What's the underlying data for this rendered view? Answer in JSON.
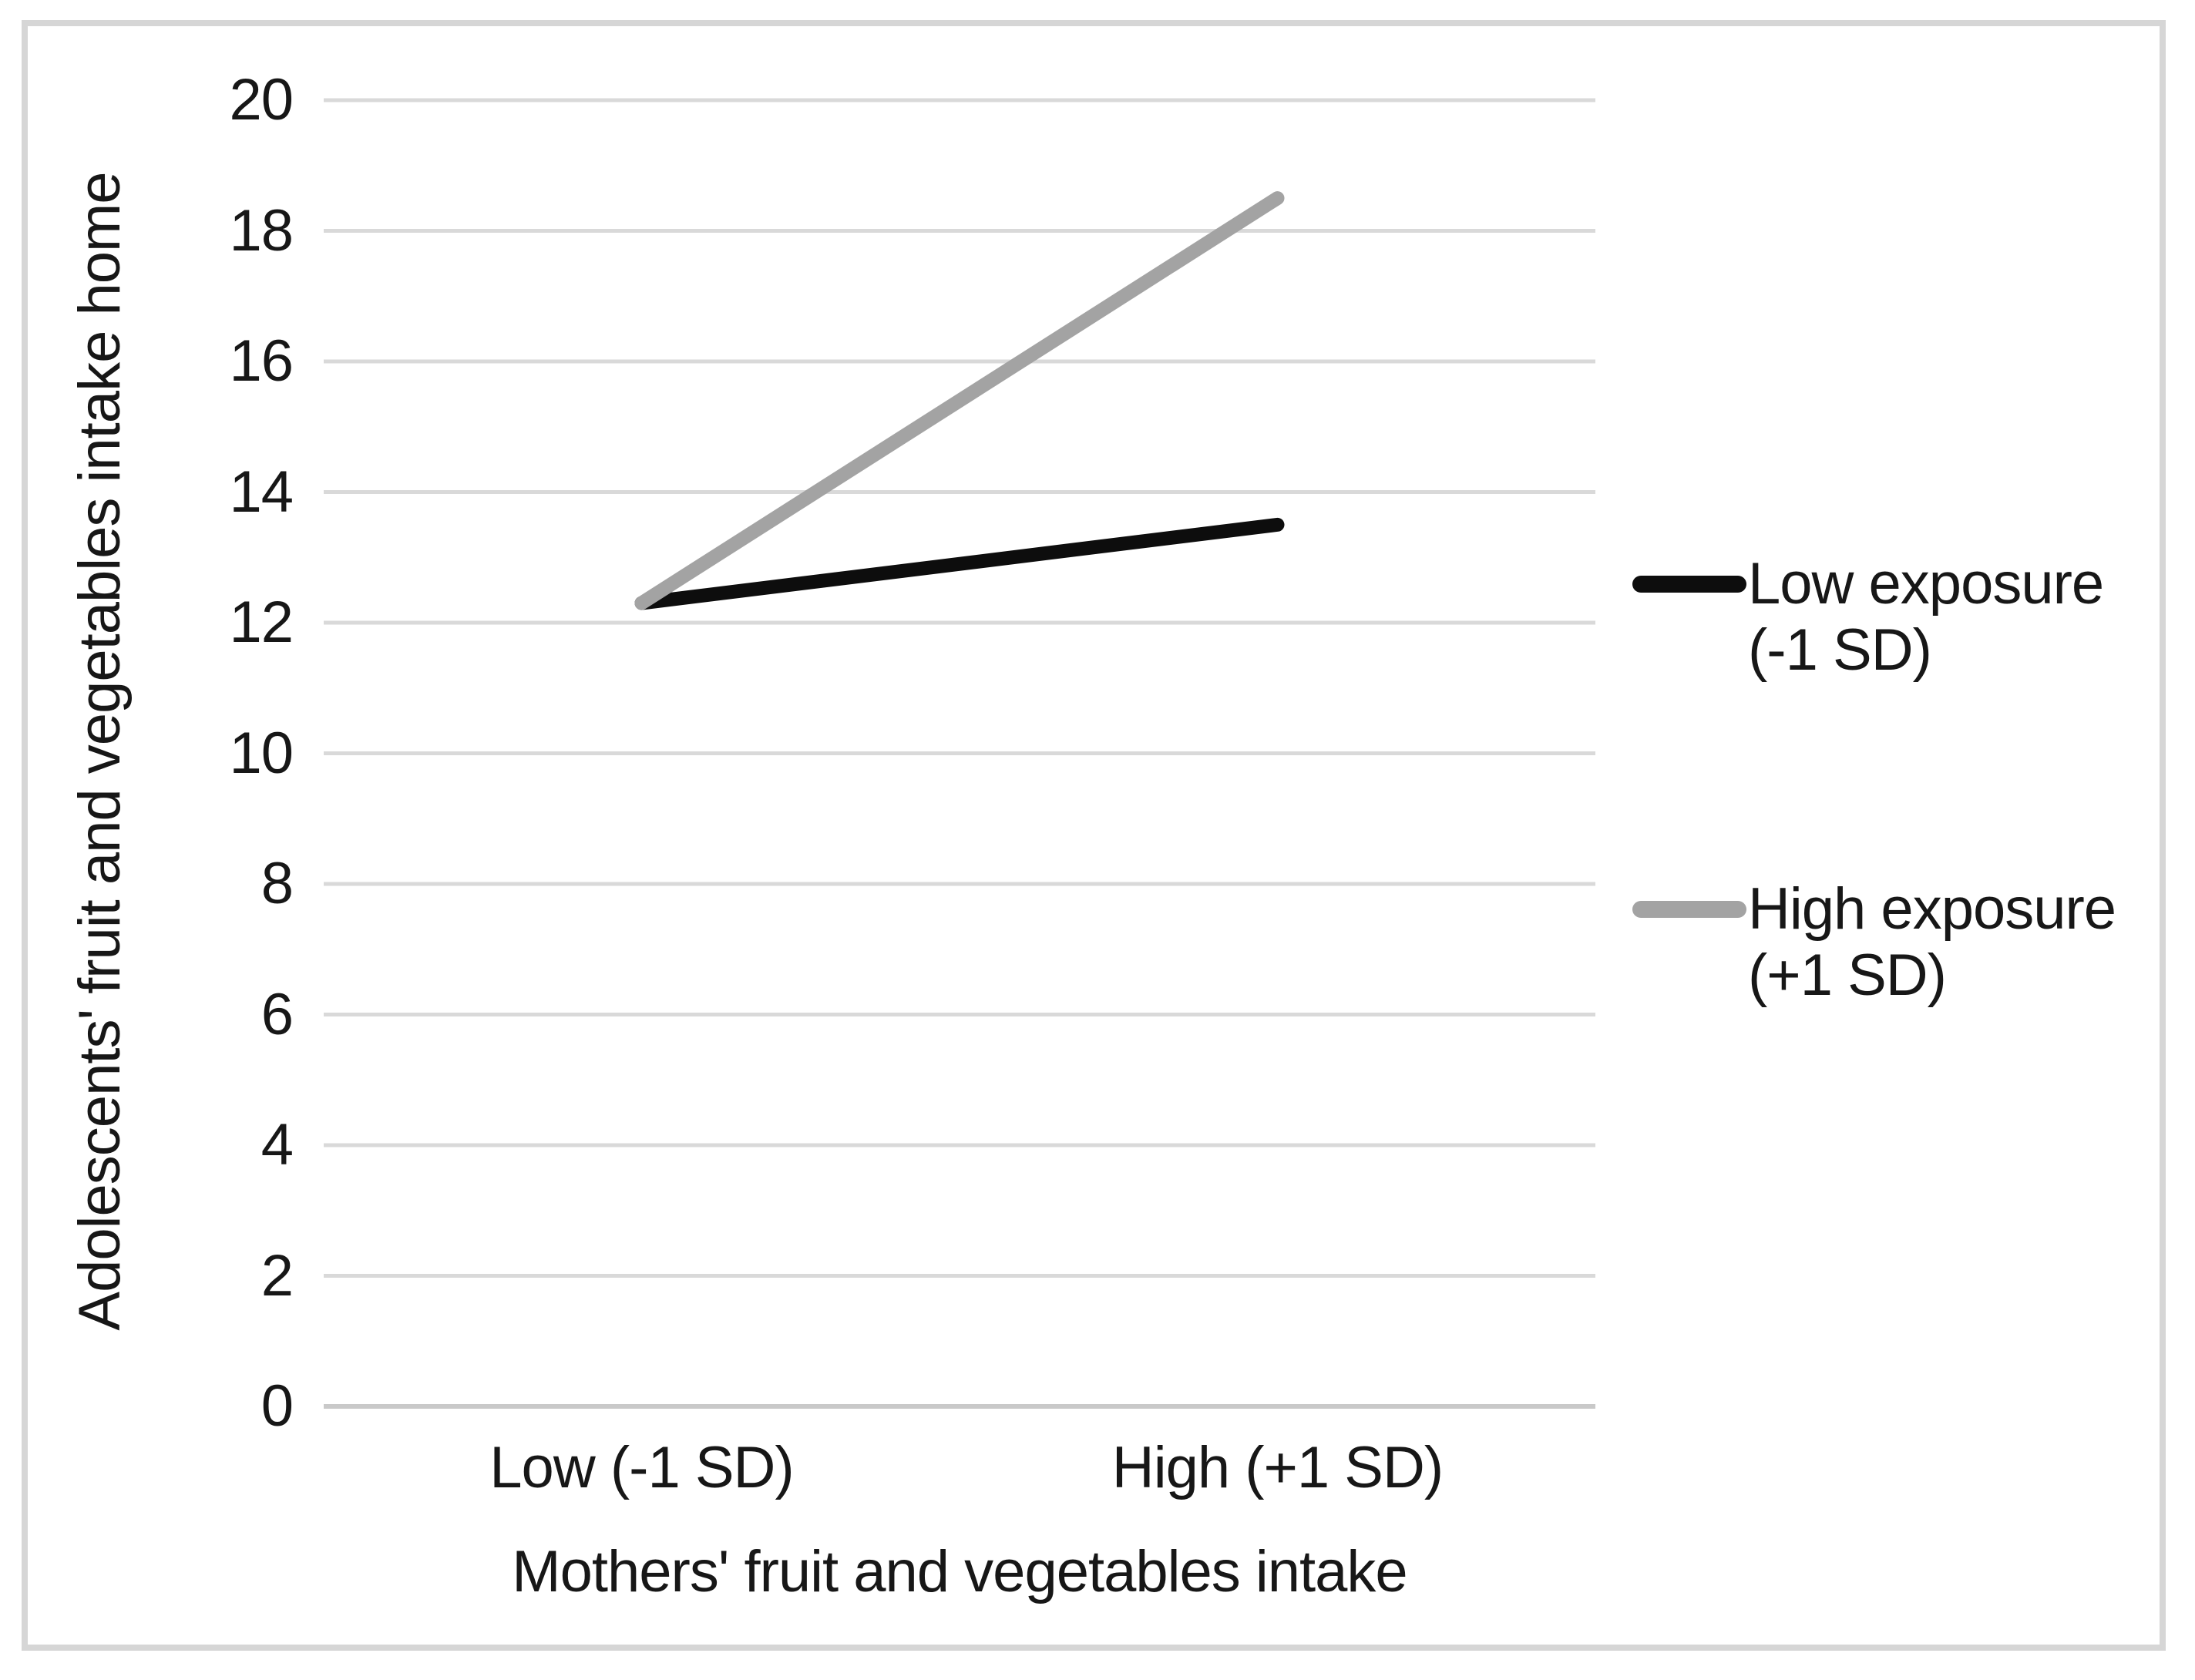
{
  "figure": {
    "background": "#ffffff",
    "border_color": "#d6d6d6"
  },
  "chart_data": {
    "type": "line",
    "title": "",
    "categories": [
      "Low (-1 SD)",
      "High (+1 SD)"
    ],
    "series": [
      {
        "name": "Low exposure (-1 SD)",
        "legend_lines": [
          "Low exposure",
          "(-1 SD)"
        ],
        "values": [
          12.3,
          13.5
        ],
        "color": "#0d0d0d"
      },
      {
        "name": "High exposure (+1 SD)",
        "legend_lines": [
          "High exposure",
          "(+1 SD)"
        ],
        "values": [
          12.3,
          18.5
        ],
        "color": "#a3a3a3"
      }
    ],
    "xlabel": "Mothers' fruit and vegetables intake",
    "ylabel": "Adolescents' fruit and vegetables intake home",
    "ylim": [
      0,
      20
    ],
    "ytick_step": 2,
    "yticks": [
      0,
      2,
      4,
      6,
      8,
      10,
      12,
      14,
      16,
      18,
      20
    ],
    "grid": true,
    "gridline_color": "#d9d9d9",
    "baseline_color": "#c9c9c9",
    "legend_position": "right"
  }
}
